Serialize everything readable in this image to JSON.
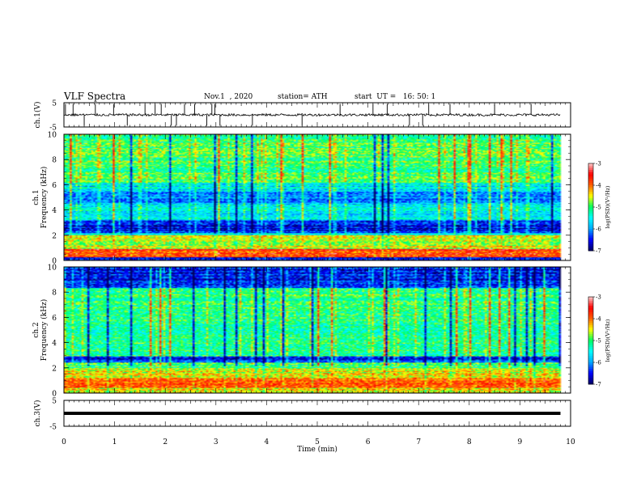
{
  "header": {
    "title": "VLF Spectra",
    "date": "Nov.1  , 2020",
    "station": "station= ATH",
    "start": "start  UT =   16: 50: 1"
  },
  "chart_data": [
    {
      "type": "line",
      "panel": "ch1-waveform",
      "ylabel": "ch.1(V)",
      "ylim": [
        -5,
        5
      ],
      "yticks": [
        "5",
        "-5"
      ],
      "xlim": [
        0,
        10
      ],
      "x_extent_min": 9.8,
      "baseline": 0,
      "noise_amplitude": 0.5,
      "spikes": [
        0.03,
        0.18,
        0.4,
        0.62,
        0.98,
        1.25,
        1.6,
        1.8,
        1.92,
        2.12,
        2.22,
        2.38,
        2.58,
        2.82,
        2.92,
        2.98,
        3.08,
        3.72,
        4.7,
        5.45,
        6.1,
        6.38,
        6.82,
        7.08,
        7.2,
        7.62,
        8.5,
        9.22
      ]
    },
    {
      "type": "heatmap",
      "panel": "ch1-spectrogram",
      "ylabel": "ch.1\nFrequency (kHz)",
      "ylim": [
        0,
        10
      ],
      "yticks": [
        "0",
        "2",
        "4",
        "6",
        "8",
        "10"
      ],
      "xlim": [
        0,
        10
      ],
      "x_extent_min": 9.8,
      "colorbar": {
        "label": "log(PSD)(V²/Hz)",
        "range": [
          -7,
          -3
        ],
        "ticks": [
          "-3",
          "-4",
          "-5",
          "-6",
          "-7"
        ]
      },
      "background_level": -5.3,
      "bands_khz": [
        {
          "from": 0,
          "to": 0.25,
          "level": -6.6
        },
        {
          "from": 0.25,
          "to": 0.9,
          "level": -3.8
        },
        {
          "from": 0.9,
          "to": 2.0,
          "level": -4.6
        },
        {
          "from": 2.0,
          "to": 2.2,
          "level": -5.3
        },
        {
          "from": 2.2,
          "to": 3.2,
          "level": -6.5
        },
        {
          "from": 3.2,
          "to": 4.6,
          "level": -5.6
        },
        {
          "from": 4.6,
          "to": 5.4,
          "level": -6.0
        },
        {
          "from": 5.4,
          "to": 6.2,
          "level": -5.6
        },
        {
          "from": 6.2,
          "to": 10,
          "level": -5.0
        }
      ]
    },
    {
      "type": "heatmap",
      "panel": "ch2-spectrogram",
      "ylabel": "ch.2\nFrequency (kHz)",
      "ylim": [
        0,
        10
      ],
      "yticks": [
        "0",
        "2",
        "4",
        "6",
        "8",
        "10"
      ],
      "xlim": [
        0,
        10
      ],
      "x_extent_min": 9.8,
      "colorbar": {
        "label": "log(PSD)(V²/Hz)",
        "range": [
          -7,
          -3
        ],
        "ticks": [
          "-3",
          "-4",
          "-5",
          "-6",
          "-7"
        ]
      },
      "background_level": -5.1,
      "bands_khz": [
        {
          "from": 0,
          "to": 0.4,
          "level": -4.4
        },
        {
          "from": 0.4,
          "to": 1.2,
          "level": -3.9
        },
        {
          "from": 1.2,
          "to": 2.0,
          "level": -4.5
        },
        {
          "from": 2.0,
          "to": 2.4,
          "level": -5.0
        },
        {
          "from": 2.4,
          "to": 2.9,
          "level": -6.4
        },
        {
          "from": 2.9,
          "to": 8.3,
          "level": -5.1
        },
        {
          "from": 8.3,
          "to": 10,
          "level": -6.5
        }
      ]
    },
    {
      "type": "line",
      "panel": "ch3-waveform",
      "ylabel": "ch.3(V)",
      "ylim": [
        -5,
        5
      ],
      "yticks": [
        "5",
        "-5"
      ],
      "xlim": [
        0,
        10
      ],
      "x_extent_min": 9.8,
      "baseline": 0
    }
  ],
  "x_axis": {
    "label": "Time  (min)",
    "ticks": [
      "0",
      "1",
      "2",
      "3",
      "4",
      "5",
      "6",
      "7",
      "8",
      "9",
      "10"
    ]
  },
  "colors": {
    "colormap": [
      "#000060",
      "#0000ff",
      "#00a8ff",
      "#00ffff",
      "#00ff60",
      "#ffff00",
      "#ff6000",
      "#ff0000",
      "#ffcccc"
    ]
  }
}
